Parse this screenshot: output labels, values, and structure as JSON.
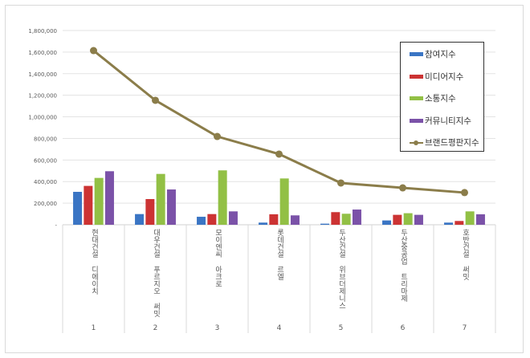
{
  "chart_data": {
    "type": "bar",
    "title": "",
    "xlabel": "",
    "ylabel": "",
    "ylim": [
      0,
      1800000
    ],
    "yticks": [
      "-",
      "200,000",
      "400,000",
      "600,000",
      "800,000",
      "1,000,000",
      "1,200,000",
      "1,400,000",
      "1,600,000",
      "1,800,000"
    ],
    "grid": true,
    "legend_position": "right",
    "categories": [
      "현대건설 디에이치",
      "대우건설 푸르지오 써밋",
      "모이엔씨 아크로",
      "롯데건설 르엘",
      "두산건설 위브더제니스",
      "두산중공업 트리마제",
      "호반건설 써밋"
    ],
    "category_numbers": [
      "1",
      "2",
      "3",
      "4",
      "5",
      "6",
      "7"
    ],
    "series": [
      {
        "name": "참여지수",
        "type": "bar",
        "color": "#3a75c4",
        "values": [
          305000,
          99000,
          74000,
          20000,
          10000,
          40000,
          20000
        ]
      },
      {
        "name": "미디어지수",
        "type": "bar",
        "color": "#cc3333",
        "values": [
          360000,
          238000,
          99000,
          97000,
          117000,
          92000,
          35000
        ]
      },
      {
        "name": "소통지수",
        "type": "bar",
        "color": "#92c045",
        "values": [
          434000,
          471000,
          504000,
          429000,
          102000,
          107000,
          124000
        ]
      },
      {
        "name": "커뮤니티지수",
        "type": "bar",
        "color": "#7b52a8",
        "values": [
          496000,
          327000,
          124000,
          87000,
          141000,
          92000,
          97000
        ]
      },
      {
        "name": "브랜드평판지수",
        "type": "line",
        "color": "#8b7d4a",
        "values": [
          1614000,
          1153000,
          818000,
          655000,
          387000,
          342000,
          298000
        ]
      }
    ]
  }
}
